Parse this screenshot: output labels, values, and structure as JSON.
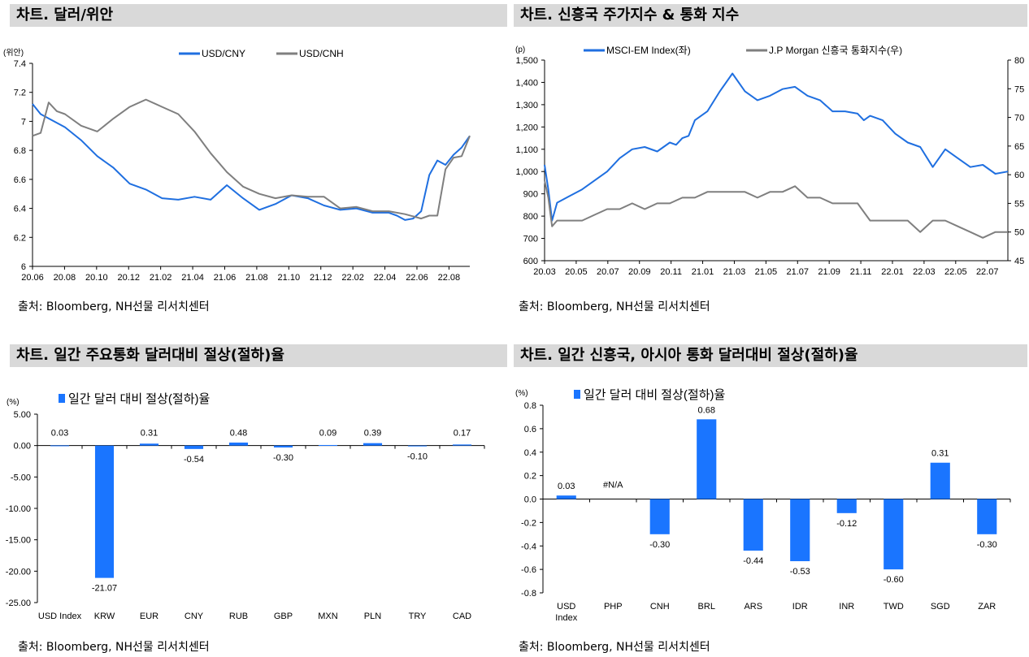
{
  "panels": {
    "p1": {
      "title": "차트. 달러/위안",
      "source": "출처: Bloomberg, NH선물 리서치센터"
    },
    "p2": {
      "title": "차트. 신흥국 주가지수 & 통화 지수",
      "source": "출처: Bloomberg, NH선물 리서치센터"
    },
    "p3": {
      "title": "차트. 일간 주요통화 달러대비 절상(절하)율",
      "source": "출처: Bloomberg, NH선물 리서치센터"
    },
    "p4": {
      "title": "차트. 일간 신흥국, 아시아 통화 달러대비 절상(절하)율",
      "source": "출처: Bloomberg, NH선물 리서치센터"
    }
  },
  "chart_data": [
    {
      "type": "line",
      "unit_label": "(위안)",
      "ylim": [
        6,
        7.4
      ],
      "yticks": [
        "7.4",
        "7.2",
        "7",
        "6.8",
        "6.6",
        "6.4",
        "6.2",
        "6"
      ],
      "xticks": [
        "20.06",
        "20.08",
        "20.10",
        "20.12",
        "21.02",
        "21.04",
        "21.06",
        "21.08",
        "21.10",
        "21.12",
        "22.02",
        "22.04",
        "22.06",
        "22.08"
      ],
      "series": [
        {
          "name": "USD/CNY",
          "color": "#1f6fe0",
          "x": [
            0,
            0.5,
            1,
            2,
            3,
            4,
            5,
            6,
            7,
            8,
            9,
            10,
            11,
            12,
            13,
            14,
            15,
            16,
            17,
            18,
            19,
            20,
            21,
            22,
            22.5,
            23,
            23.5,
            24,
            24.5,
            25,
            25.5,
            26,
            26.5,
            27
          ],
          "y": [
            7.12,
            7.05,
            7.02,
            6.96,
            6.87,
            6.76,
            6.68,
            6.57,
            6.53,
            6.47,
            6.46,
            6.48,
            6.46,
            6.56,
            6.47,
            6.39,
            6.43,
            6.49,
            6.47,
            6.42,
            6.39,
            6.4,
            6.37,
            6.37,
            6.35,
            6.32,
            6.33,
            6.38,
            6.63,
            6.73,
            6.7,
            6.77,
            6.82,
            6.9
          ]
        },
        {
          "name": "USD/CNH",
          "color": "#7f7f7f",
          "x": [
            0,
            0.5,
            1,
            1.5,
            2,
            3,
            4,
            5,
            6,
            7,
            8,
            9,
            10,
            11,
            12,
            13,
            14,
            15,
            16,
            17,
            18,
            19,
            20,
            21,
            22,
            23,
            24,
            24.5,
            25,
            25.5,
            26,
            26.5,
            27
          ],
          "y": [
            6.9,
            6.92,
            7.13,
            7.07,
            7.05,
            6.97,
            6.93,
            7.02,
            7.1,
            7.15,
            7.1,
            7.05,
            6.93,
            6.78,
            6.65,
            6.55,
            6.5,
            6.47,
            6.49,
            6.48,
            6.48,
            6.4,
            6.41,
            6.38,
            6.38,
            6.36,
            6.33,
            6.35,
            6.35,
            6.67,
            6.75,
            6.76,
            6.9
          ]
        }
      ]
    },
    {
      "type": "line",
      "unit_label": "(p)",
      "ylim": [
        600,
        1500
      ],
      "ylim_right": [
        45,
        80
      ],
      "yticks": [
        "1,500",
        "1,400",
        "1,300",
        "1,200",
        "1,100",
        "1,000",
        "900",
        "800",
        "700",
        "600"
      ],
      "yticks_right": [
        "80",
        "75",
        "70",
        "65",
        "60",
        "55",
        "50",
        "45"
      ],
      "xticks": [
        "20.03",
        "20.05",
        "20.07",
        "20.09",
        "20.11",
        "21.01",
        "21.03",
        "21.05",
        "21.07",
        "21.09",
        "21.11",
        "22.01",
        "22.03",
        "22.05",
        "22.07"
      ],
      "series": [
        {
          "name": "MSCI-EM Index(좌)",
          "axis": "left",
          "color": "#1f6fe0",
          "x": [
            0,
            0.3,
            0.6,
            1,
            2,
            3,
            4,
            5,
            6,
            7,
            8,
            9,
            10,
            10.5,
            11,
            11.5,
            12,
            13,
            14,
            15,
            16,
            17,
            18,
            19,
            20,
            21,
            22,
            23,
            24,
            25,
            25.5,
            26,
            27,
            28,
            29,
            30,
            31,
            32,
            33,
            34,
            35,
            36,
            37
          ],
          "y": [
            1030,
            920,
            780,
            860,
            890,
            920,
            960,
            1000,
            1060,
            1100,
            1110,
            1090,
            1130,
            1120,
            1150,
            1160,
            1230,
            1270,
            1360,
            1440,
            1360,
            1320,
            1340,
            1370,
            1380,
            1340,
            1320,
            1270,
            1270,
            1260,
            1230,
            1250,
            1230,
            1170,
            1130,
            1110,
            1020,
            1100,
            1060,
            1020,
            1030,
            990,
            1000
          ]
        },
        {
          "name": "J.P Morgan 신흥국 통화지수(우)",
          "axis": "right",
          "color": "#7f7f7f",
          "x": [
            0,
            0.3,
            0.6,
            1,
            2,
            3,
            4,
            5,
            6,
            7,
            8,
            9,
            10,
            11,
            12,
            13,
            14,
            15,
            16,
            17,
            18,
            19,
            20,
            21,
            22,
            23,
            24,
            25,
            26,
            27,
            28,
            29,
            30,
            31,
            32,
            33,
            34,
            35,
            36,
            37
          ],
          "y": [
            59,
            56,
            51,
            52,
            52,
            52,
            53,
            54,
            54,
            55,
            54,
            55,
            55,
            56,
            56,
            57,
            57,
            57,
            57,
            56,
            57,
            57,
            58,
            56,
            56,
            55,
            55,
            55,
            52,
            52,
            52,
            52,
            50,
            52,
            52,
            51,
            50,
            49,
            50,
            50
          ]
        }
      ]
    },
    {
      "type": "bar",
      "unit_label": "(%)",
      "ylim": [
        -25,
        5
      ],
      "yticks": [
        "5.00",
        "0.00",
        "-5.00",
        "-10.00",
        "-15.00",
        "-20.00",
        "-25.00"
      ],
      "categories": [
        "USD Index",
        "KRW",
        "EUR",
        "CNY",
        "RUB",
        "GBP",
        "MXN",
        "PLN",
        "TRY",
        "CAD"
      ],
      "series": [
        {
          "name": "일간 달러 대비 절상(절하)율",
          "color": "#1a75ff",
          "values": [
            0.03,
            -21.07,
            0.31,
            -0.54,
            0.48,
            -0.3,
            0.09,
            0.39,
            -0.1,
            0.17
          ],
          "labels": [
            "0.03",
            "-21.07",
            "0.31",
            "-0.54",
            "0.48",
            "-0.30",
            "0.09",
            "0.39",
            "-0.10",
            "0.17"
          ]
        }
      ]
    },
    {
      "type": "bar",
      "unit_label": "(%)",
      "ylim": [
        -0.8,
        0.8
      ],
      "yticks": [
        "0.8",
        "0.6",
        "0.4",
        "0.2",
        "0.0",
        "-0.2",
        "-0.4",
        "-0.6",
        "-0.8"
      ],
      "categories": [
        "USD Index",
        "PHP",
        "CNH",
        "BRL",
        "ARS",
        "IDR",
        "INR",
        "TWD",
        "SGD",
        "ZAR"
      ],
      "series": [
        {
          "name": "일간 달러 대비 절상(절하)율",
          "color": "#1a75ff",
          "values": [
            0.03,
            null,
            -0.3,
            0.68,
            -0.44,
            -0.53,
            -0.12,
            -0.6,
            0.31,
            -0.3
          ],
          "labels": [
            "0.03",
            "#N/A",
            "-0.30",
            "0.68",
            "-0.44",
            "-0.53",
            "-0.12",
            "-0.60",
            "0.31",
            "-0.30"
          ]
        }
      ]
    }
  ]
}
